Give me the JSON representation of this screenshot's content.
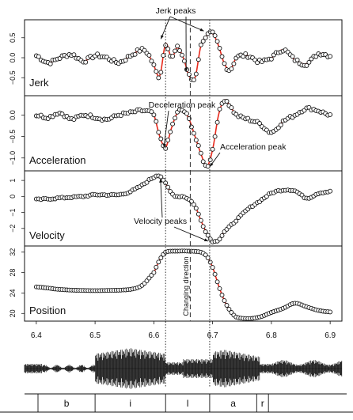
{
  "chart_data": {
    "type": "line",
    "time_axis": {
      "range": [
        6.38,
        6.92
      ],
      "ticks": [
        6.4,
        6.5,
        6.6,
        6.7,
        6.8,
        6.9
      ],
      "tick_labels": [
        "6.4",
        "6.5",
        "6.6",
        "6.7",
        "6.8",
        "6.9"
      ]
    },
    "marker_lines": {
      "dotted": [
        6.62,
        6.695
      ],
      "dashed": [
        6.662
      ]
    },
    "panels": [
      {
        "id": "jerk",
        "label": "Jerk",
        "ylim": [
          -0.95,
          0.95
        ],
        "yticks": [
          -0.5,
          0.0,
          0.5
        ],
        "ytick_labels": [
          "−0.5",
          "0.0",
          "0.5"
        ],
        "series": {
          "x": [
            6.4,
            6.42,
            6.44,
            6.46,
            6.48,
            6.5,
            6.52,
            6.54,
            6.56,
            6.58,
            6.59,
            6.6,
            6.61,
            6.62,
            6.63,
            6.64,
            6.65,
            6.66,
            6.67,
            6.68,
            6.69,
            6.7,
            6.71,
            6.72,
            6.73,
            6.74,
            6.76,
            6.78,
            6.8,
            6.82,
            6.84,
            6.86,
            6.88,
            6.9
          ],
          "y": [
            0.05,
            -0.12,
            0.0,
            0.08,
            -0.08,
            0.05,
            0.0,
            -0.12,
            0.05,
            0.2,
            0.1,
            -0.2,
            -0.45,
            0.35,
            0.0,
            0.25,
            0.0,
            -0.45,
            -0.5,
            0.3,
            0.55,
            0.6,
            0.3,
            -0.15,
            -0.3,
            0.0,
            0.05,
            -0.1,
            0.0,
            0.2,
            -0.05,
            -0.15,
            0.1,
            0.05
          ]
        }
      },
      {
        "id": "acceleration",
        "label": "Acceleration",
        "ylim": [
          -1.3,
          0.45
        ],
        "yticks": [
          -1.0,
          -0.5,
          0.0
        ],
        "ytick_labels": [
          "−1.0",
          "−0.5",
          "0.0"
        ],
        "series": {
          "x": [
            6.4,
            6.42,
            6.44,
            6.46,
            6.48,
            6.5,
            6.52,
            6.54,
            6.56,
            6.58,
            6.6,
            6.61,
            6.62,
            6.63,
            6.64,
            6.65,
            6.66,
            6.67,
            6.68,
            6.69,
            6.7,
            6.71,
            6.72,
            6.73,
            6.74,
            6.76,
            6.78,
            6.8,
            6.82,
            6.84,
            6.86,
            6.88,
            6.9
          ],
          "y": [
            0.0,
            -0.05,
            0.05,
            -0.1,
            0.0,
            -0.05,
            -0.1,
            0.0,
            0.05,
            0.1,
            0.0,
            -0.5,
            -0.75,
            -0.3,
            0.05,
            0.1,
            -0.1,
            -0.5,
            -0.9,
            -1.2,
            -0.8,
            0.0,
            0.35,
            0.2,
            0.0,
            -0.1,
            -0.2,
            -0.4,
            -0.15,
            0.0,
            0.15,
            0.1,
            0.0
          ]
        }
      },
      {
        "id": "velocity",
        "label": "Velocity",
        "ylim": [
          -3.1,
          1.6
        ],
        "yticks": [
          -2,
          -1,
          0,
          1
        ],
        "ytick_labels": [
          "−2",
          "−1",
          "0",
          "1"
        ],
        "series": {
          "x": [
            6.4,
            6.44,
            6.48,
            6.5,
            6.54,
            6.56,
            6.58,
            6.6,
            6.61,
            6.62,
            6.63,
            6.64,
            6.65,
            6.66,
            6.67,
            6.68,
            6.69,
            6.7,
            6.71,
            6.72,
            6.74,
            6.76,
            6.78,
            6.8,
            6.82,
            6.84,
            6.86,
            6.88,
            6.9
          ],
          "y": [
            -0.2,
            -0.1,
            0.0,
            0.1,
            0.1,
            0.3,
            0.7,
            1.2,
            1.3,
            0.8,
            0.2,
            0.0,
            0.0,
            -0.2,
            -0.6,
            -1.5,
            -2.3,
            -2.8,
            -2.7,
            -2.2,
            -1.5,
            -0.8,
            -0.3,
            0.2,
            0.4,
            0.35,
            -0.1,
            0.2,
            0.3
          ]
        }
      },
      {
        "id": "position",
        "label": "Position",
        "ylim": [
          18.5,
          33.2
        ],
        "yticks": [
          20,
          24,
          28,
          32
        ],
        "ytick_labels": [
          "20",
          "24",
          "28",
          "32"
        ],
        "series": {
          "x": [
            6.4,
            6.44,
            6.48,
            6.52,
            6.56,
            6.58,
            6.6,
            6.61,
            6.62,
            6.64,
            6.66,
            6.68,
            6.69,
            6.7,
            6.71,
            6.72,
            6.73,
            6.74,
            6.76,
            6.78,
            6.8,
            6.82,
            6.84,
            6.86,
            6.88,
            6.9
          ],
          "y": [
            25.2,
            24.7,
            24.5,
            24.5,
            24.7,
            25.5,
            28.0,
            30.5,
            32.0,
            32.2,
            32.2,
            32.0,
            31.2,
            29.0,
            25.5,
            22.5,
            20.5,
            19.3,
            19.0,
            19.3,
            20.2,
            21.0,
            22.0,
            21.3,
            20.6,
            20.3
          ]
        }
      }
    ],
    "annotations": [
      {
        "id": "jerk-peaks",
        "text": "Jerk peaks",
        "panel": "jerk",
        "targets": [
          [
            6.612,
            0.35
          ],
          [
            6.685,
            0.55
          ]
        ]
      },
      {
        "id": "deceleration-peak",
        "text": "Deceleration peak",
        "panel": "acceleration",
        "targets": [
          [
            6.617,
            -0.75
          ]
        ]
      },
      {
        "id": "acceleration-peak",
        "text": "Acceleration peak",
        "panel": "acceleration",
        "targets": [
          [
            6.69,
            -1.2
          ]
        ]
      },
      {
        "id": "velocity-peaks",
        "text": "Velocity peaks",
        "panel": "velocity",
        "targets": [
          [
            6.61,
            1.3
          ],
          [
            6.695,
            -2.8
          ]
        ]
      },
      {
        "id": "changing-direction",
        "text": "Changing direction",
        "panel": "position"
      }
    ],
    "segments": [
      {
        "label": "b",
        "start": 6.38,
        "end": 6.5
      },
      {
        "label": "i",
        "start": 6.5,
        "end": 6.62
      },
      {
        "label": "l",
        "start": 6.62,
        "end": 6.695
      },
      {
        "label": "a",
        "start": 6.695,
        "end": 6.775
      },
      {
        "label": "r",
        "start": 6.775,
        "end": 6.795
      },
      {
        "label": "",
        "start": 6.795,
        "end": 6.92
      }
    ]
  }
}
